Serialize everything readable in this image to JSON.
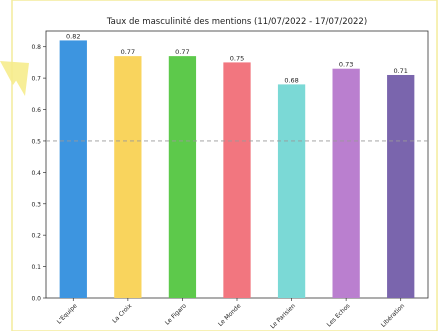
{
  "chart_data": {
    "type": "bar",
    "title": "Taux de masculinité des mentions (11/07/2022 - 17/07/2022)",
    "xlabel": "",
    "ylabel": "",
    "categories": [
      "L'Equipe",
      "La Croix",
      "Le Figaro",
      "Le Monde",
      "Le Parisien",
      "Les Echos",
      "Libération"
    ],
    "values": [
      0.82,
      0.77,
      0.77,
      0.75,
      0.68,
      0.73,
      0.71
    ],
    "value_labels": [
      "0.82",
      "0.77",
      "0.77",
      "0.75",
      "0.68",
      "0.73",
      "0.71"
    ],
    "ylim": [
      0.0,
      0.85
    ],
    "yticks": [
      0.0,
      0.1,
      0.2,
      0.3,
      0.4,
      0.5,
      0.6,
      0.7,
      0.8
    ],
    "ytick_labels": [
      "0.0",
      "0.1",
      "0.2",
      "0.3",
      "0.4",
      "0.5",
      "0.6",
      "0.7",
      "0.8"
    ],
    "reference_line": 0.5,
    "grid": false,
    "colors": [
      "#3d95e0",
      "#f9d45d",
      "#5dc94b",
      "#f2767f",
      "#7bd9d6",
      "#ba7fcf",
      "#7a65ad"
    ],
    "frame_border_color": "#f4ec9c",
    "arrow_color": "#f6ec8c"
  }
}
